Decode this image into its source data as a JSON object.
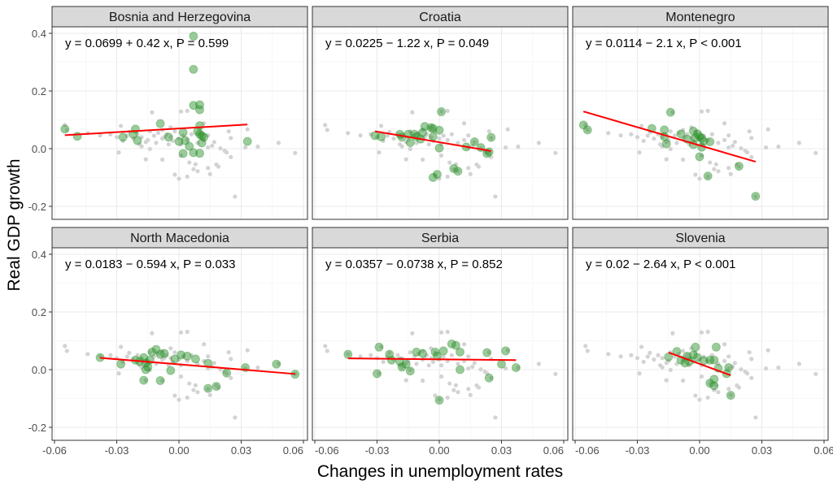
{
  "chart_data": {
    "type": "scatter",
    "layout": "facet-grid 2x3",
    "xlabel": "Changes in unemployment rates",
    "ylabel": "Real GDP growth",
    "xlim": [
      -0.062,
      0.062
    ],
    "ylim": [
      -0.24,
      0.42
    ],
    "xticks": [
      "-0.06",
      "-0.03",
      "0.00",
      "0.03",
      "0.06"
    ],
    "yticks": [
      "-0.2",
      "0.0",
      "0.2",
      "0.4"
    ],
    "xtick_values": [
      -0.06,
      -0.03,
      0.0,
      0.03,
      0.06
    ],
    "ytick_values": [
      -0.2,
      0.0,
      0.2,
      0.4
    ],
    "grid": true,
    "colors": {
      "background_points": "#d3d3d3",
      "country_points": "#228b22",
      "fit_line": "#ff0000",
      "strip": "#d9d9d9"
    },
    "background_points": [
      [
        -0.055,
        0.082
      ],
      [
        -0.054,
        0.065
      ],
      [
        -0.044,
        0.054
      ],
      [
        -0.038,
        0.046
      ],
      [
        -0.028,
        0.079
      ],
      [
        -0.029,
        -0.013
      ],
      [
        -0.027,
        0.027
      ],
      [
        -0.018,
        0.008
      ],
      [
        -0.016,
        -0.037
      ],
      [
        -0.016,
        0.023
      ],
      [
        -0.014,
        -0.001
      ],
      [
        -0.013,
        0.126
      ],
      [
        -0.008,
        -0.038
      ],
      [
        -0.008,
        0.065
      ],
      [
        -0.007,
        0.041
      ],
      [
        -0.004,
        0.074
      ],
      [
        -0.003,
        0.027
      ],
      [
        -0.002,
        -0.09
      ],
      [
        0.0,
        -0.104
      ],
      [
        0.001,
        0.129
      ],
      [
        0.001,
        -0.024
      ],
      [
        0.004,
        0.131
      ],
      [
        0.004,
        -0.097
      ],
      [
        0.005,
        -0.048
      ],
      [
        0.007,
        -0.071
      ],
      [
        0.008,
        -0.054
      ],
      [
        0.009,
        -0.078
      ],
      [
        0.012,
        0.088
      ],
      [
        0.014,
        0.004
      ],
      [
        0.014,
        0.046
      ],
      [
        0.014,
        -0.067
      ],
      [
        0.015,
        -0.088
      ],
      [
        0.017,
        0.023
      ],
      [
        0.018,
        -0.055
      ],
      [
        0.019,
        -0.062
      ],
      [
        0.02,
        0.001
      ],
      [
        0.022,
        -0.007
      ],
      [
        0.023,
        -0.013
      ],
      [
        0.024,
        0.06
      ],
      [
        0.025,
        -0.029
      ],
      [
        0.025,
        0.037
      ],
      [
        0.027,
        -0.166
      ],
      [
        0.033,
        0.067
      ],
      [
        0.032,
        0.004
      ],
      [
        0.038,
        0.007
      ],
      [
        0.048,
        0.02
      ],
      [
        0.056,
        -0.015
      ],
      [
        -0.025,
        0.045
      ],
      [
        -0.022,
        0.035
      ],
      [
        -0.02,
        0.05
      ],
      [
        -0.018,
        0.04
      ],
      [
        -0.015,
        0.03
      ],
      [
        -0.012,
        0.045
      ],
      [
        -0.01,
        0.055
      ],
      [
        -0.008,
        0.035
      ],
      [
        -0.006,
        0.05
      ],
      [
        -0.004,
        0.04
      ],
      [
        -0.002,
        0.06
      ],
      [
        0.0,
        0.035
      ],
      [
        0.002,
        0.045
      ],
      [
        0.004,
        0.03
      ],
      [
        0.006,
        0.05
      ],
      [
        -0.011,
        0.02
      ],
      [
        -0.019,
        0.015
      ],
      [
        -0.03,
        0.04
      ],
      [
        -0.033,
        0.05
      ],
      [
        0.009,
        0.02
      ],
      [
        0.012,
        0.03
      ],
      [
        0.016,
        0.01
      ],
      [
        -0.005,
        0.015
      ],
      [
        0.001,
        0.015
      ],
      [
        -0.014,
        0.06
      ],
      [
        -0.024,
        0.058
      ]
    ],
    "panels": [
      {
        "name": "Bosnia and Herzegovina",
        "equation": "y = 0.0699 + 0.42 x, P = 0.599",
        "intercept": 0.0699,
        "slope": 0.42,
        "points": [
          [
            -0.055,
            0.068
          ],
          [
            -0.049,
            0.043
          ],
          [
            -0.027,
            0.04
          ],
          [
            -0.021,
            0.068
          ],
          [
            -0.022,
            0.05
          ],
          [
            -0.02,
            0.028
          ],
          [
            -0.009,
            0.087
          ],
          [
            -0.005,
            0.04
          ],
          [
            0.0,
            0.025
          ],
          [
            0.002,
            0.056
          ],
          [
            0.003,
            0.028
          ],
          [
            0.005,
            0.008
          ],
          [
            0.002,
            -0.017
          ],
          [
            0.007,
            -0.014
          ],
          [
            0.01,
            -0.016
          ],
          [
            0.007,
            0.39
          ],
          [
            0.007,
            0.275
          ],
          [
            0.007,
            0.15
          ],
          [
            0.01,
            0.152
          ],
          [
            0.01,
            0.135
          ],
          [
            0.01,
            0.08
          ],
          [
            0.009,
            0.06
          ],
          [
            0.01,
            0.05
          ],
          [
            0.011,
            0.045
          ],
          [
            0.012,
            0.04
          ],
          [
            0.011,
            0.02
          ],
          [
            0.033,
            0.025
          ]
        ]
      },
      {
        "name": "Croatia",
        "equation": "y = 0.0225 − 1.22 x, P = 0.049",
        "intercept": 0.0225,
        "slope": -1.22,
        "points": [
          [
            -0.031,
            0.045
          ],
          [
            -0.028,
            0.041
          ],
          [
            -0.019,
            0.05
          ],
          [
            -0.018,
            0.04
          ],
          [
            -0.015,
            0.05
          ],
          [
            -0.014,
            0.021
          ],
          [
            -0.012,
            0.05
          ],
          [
            -0.011,
            0.042
          ],
          [
            -0.009,
            0.033
          ],
          [
            -0.008,
            0.056
          ],
          [
            -0.007,
            0.077
          ],
          [
            -0.004,
            0.073
          ],
          [
            -0.003,
            0.07
          ],
          [
            -0.003,
            0.042
          ],
          [
            0.0,
            0.064
          ],
          [
            0.0,
            0.002
          ],
          [
            0.001,
            0.128
          ],
          [
            -0.001,
            -0.089
          ],
          [
            -0.003,
            -0.1
          ],
          [
            0.007,
            -0.069
          ],
          [
            0.009,
            -0.078
          ],
          [
            0.013,
            0.006
          ],
          [
            0.017,
            0.024
          ],
          [
            0.02,
            0.004
          ],
          [
            0.023,
            -0.017
          ],
          [
            0.024,
            -0.011
          ],
          [
            0.025,
            0.039
          ]
        ]
      },
      {
        "name": "Montenegro",
        "equation": "y = 0.0114 − 2.1 x, P < 0.001",
        "intercept": 0.0114,
        "slope": -2.1,
        "points": [
          [
            -0.056,
            0.082
          ],
          [
            -0.054,
            0.065
          ],
          [
            -0.023,
            0.07
          ],
          [
            -0.017,
            0.065
          ],
          [
            -0.017,
            0.042
          ],
          [
            -0.016,
            0.017
          ],
          [
            -0.014,
            0.126
          ],
          [
            -0.009,
            0.051
          ],
          [
            -0.006,
            0.033
          ],
          [
            -0.003,
            0.014
          ],
          [
            -0.003,
            0.061
          ],
          [
            -0.002,
            0.037
          ],
          [
            -0.001,
            0.051
          ],
          [
            0.0,
            0.042
          ],
          [
            0.001,
            0.036
          ],
          [
            0.002,
            0.026
          ],
          [
            0.001,
            0.005
          ],
          [
            0.0,
            -0.028
          ],
          [
            0.004,
            -0.095
          ],
          [
            0.005,
            0.024
          ],
          [
            0.019,
            -0.061
          ],
          [
            0.027,
            -0.165
          ]
        ]
      },
      {
        "name": "North Macedonia",
        "equation": "y = 0.0183 − 0.594 x, P = 0.033",
        "intercept": 0.0183,
        "slope": -0.594,
        "points": [
          [
            -0.038,
            0.042
          ],
          [
            -0.028,
            0.019
          ],
          [
            -0.021,
            0.033
          ],
          [
            -0.019,
            0.028
          ],
          [
            -0.017,
            0.042
          ],
          [
            -0.016,
            0.023
          ],
          [
            -0.015,
            0.009
          ],
          [
            -0.016,
            0.0
          ],
          [
            -0.014,
            0.033
          ],
          [
            -0.013,
            0.061
          ],
          [
            -0.011,
            0.07
          ],
          [
            -0.017,
            -0.037
          ],
          [
            -0.009,
            -0.038
          ],
          [
            -0.009,
            0.053
          ],
          [
            -0.007,
            0.056
          ],
          [
            -0.004,
            -0.003
          ],
          [
            -0.002,
            0.037
          ],
          [
            0.001,
            0.051
          ],
          [
            0.004,
            0.047
          ],
          [
            0.008,
            0.037
          ],
          [
            0.014,
            0.022
          ],
          [
            0.014,
            -0.065
          ],
          [
            0.018,
            -0.058
          ],
          [
            0.023,
            -0.012
          ],
          [
            0.032,
            0.007
          ],
          [
            0.047,
            0.019
          ],
          [
            0.056,
            -0.016
          ]
        ]
      },
      {
        "name": "Serbia",
        "equation": "y = 0.0357 − 0.0738 x, P = 0.852",
        "intercept": 0.0357,
        "slope": -0.0738,
        "points": [
          [
            -0.044,
            0.053
          ],
          [
            -0.03,
            -0.014
          ],
          [
            -0.029,
            0.078
          ],
          [
            -0.024,
            0.053
          ],
          [
            -0.023,
            0.033
          ],
          [
            -0.019,
            0.028
          ],
          [
            -0.018,
            0.009
          ],
          [
            -0.016,
            0.019
          ],
          [
            -0.014,
            -0.005
          ],
          [
            -0.011,
            0.061
          ],
          [
            -0.008,
            0.056
          ],
          [
            -0.002,
            0.061
          ],
          [
            -0.001,
            0.047
          ],
          [
            0.0,
            -0.106
          ],
          [
            0.002,
            0.065
          ],
          [
            0.006,
            0.089
          ],
          [
            0.008,
            0.084
          ],
          [
            0.01,
            0.061
          ],
          [
            0.01,
            0.0
          ],
          [
            0.023,
            0.059
          ],
          [
            0.024,
            -0.029
          ],
          [
            0.03,
            0.019
          ],
          [
            0.032,
            0.065
          ],
          [
            0.037,
            0.007
          ]
        ]
      },
      {
        "name": "Slovenia",
        "equation": "y = 0.02 − 2.64 x, P < 0.001",
        "intercept": 0.02,
        "slope": -2.64,
        "points": [
          [
            -0.015,
            0.044
          ],
          [
            -0.011,
            0.063
          ],
          [
            -0.009,
            0.033
          ],
          [
            -0.007,
            0.023
          ],
          [
            -0.006,
            0.047
          ],
          [
            -0.005,
            0.028
          ],
          [
            -0.002,
            0.078
          ],
          [
            -0.003,
            0.051
          ],
          [
            -0.001,
            0.042
          ],
          [
            0.002,
            0.031
          ],
          [
            0.005,
            0.033
          ],
          [
            0.007,
            0.033
          ],
          [
            0.008,
            0.078
          ],
          [
            0.009,
            0.005
          ],
          [
            0.007,
            -0.033
          ],
          [
            0.005,
            -0.047
          ],
          [
            0.007,
            -0.056
          ],
          [
            0.014,
            0.007
          ],
          [
            0.013,
            -0.014
          ],
          [
            0.015,
            -0.089
          ]
        ]
      }
    ]
  }
}
